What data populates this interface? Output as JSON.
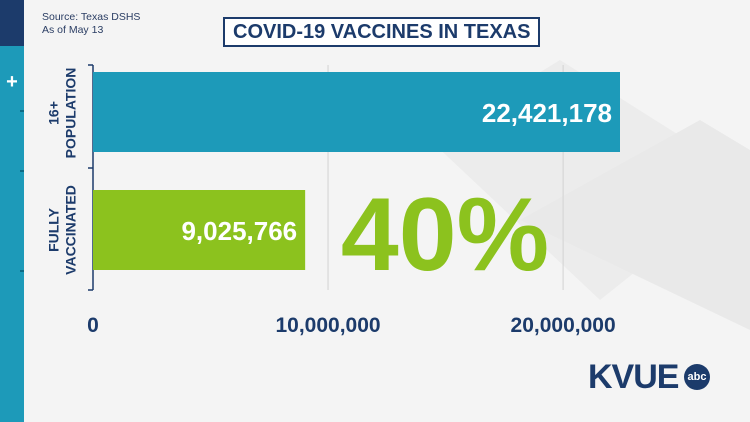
{
  "source_lines": [
    "Source: Texas DSHS",
    "As of May 13"
  ],
  "title": "COVID-19 VACCINES IN TEXAS",
  "big_percent": "40%",
  "colors": {
    "navy": "#1c3b6b",
    "teal": "#1d9ab9",
    "green": "#8cc21e",
    "white": "#ffffff"
  },
  "chart_data": {
    "type": "bar",
    "orientation": "horizontal",
    "categories": [
      "16+ POPULATION",
      "FULLY VACCINATED"
    ],
    "category_lines": [
      [
        "16+",
        "POPULATION"
      ],
      [
        "FULLY",
        "VACCINATED"
      ]
    ],
    "values": [
      22421178,
      9025766
    ],
    "value_labels": [
      "22,421,178",
      "9,025,766"
    ],
    "bar_colors": [
      "#1d9ab9",
      "#8cc21e"
    ],
    "xlim": [
      0,
      22421178
    ],
    "xticks": [
      0,
      10000000,
      20000000
    ],
    "xtick_labels": [
      "0",
      "10,000,000",
      "20,000,000"
    ],
    "grid": true,
    "title": "COVID-19 VACCINES IN TEXAS"
  },
  "logo": {
    "text": "KVUE",
    "badge": "abc"
  }
}
